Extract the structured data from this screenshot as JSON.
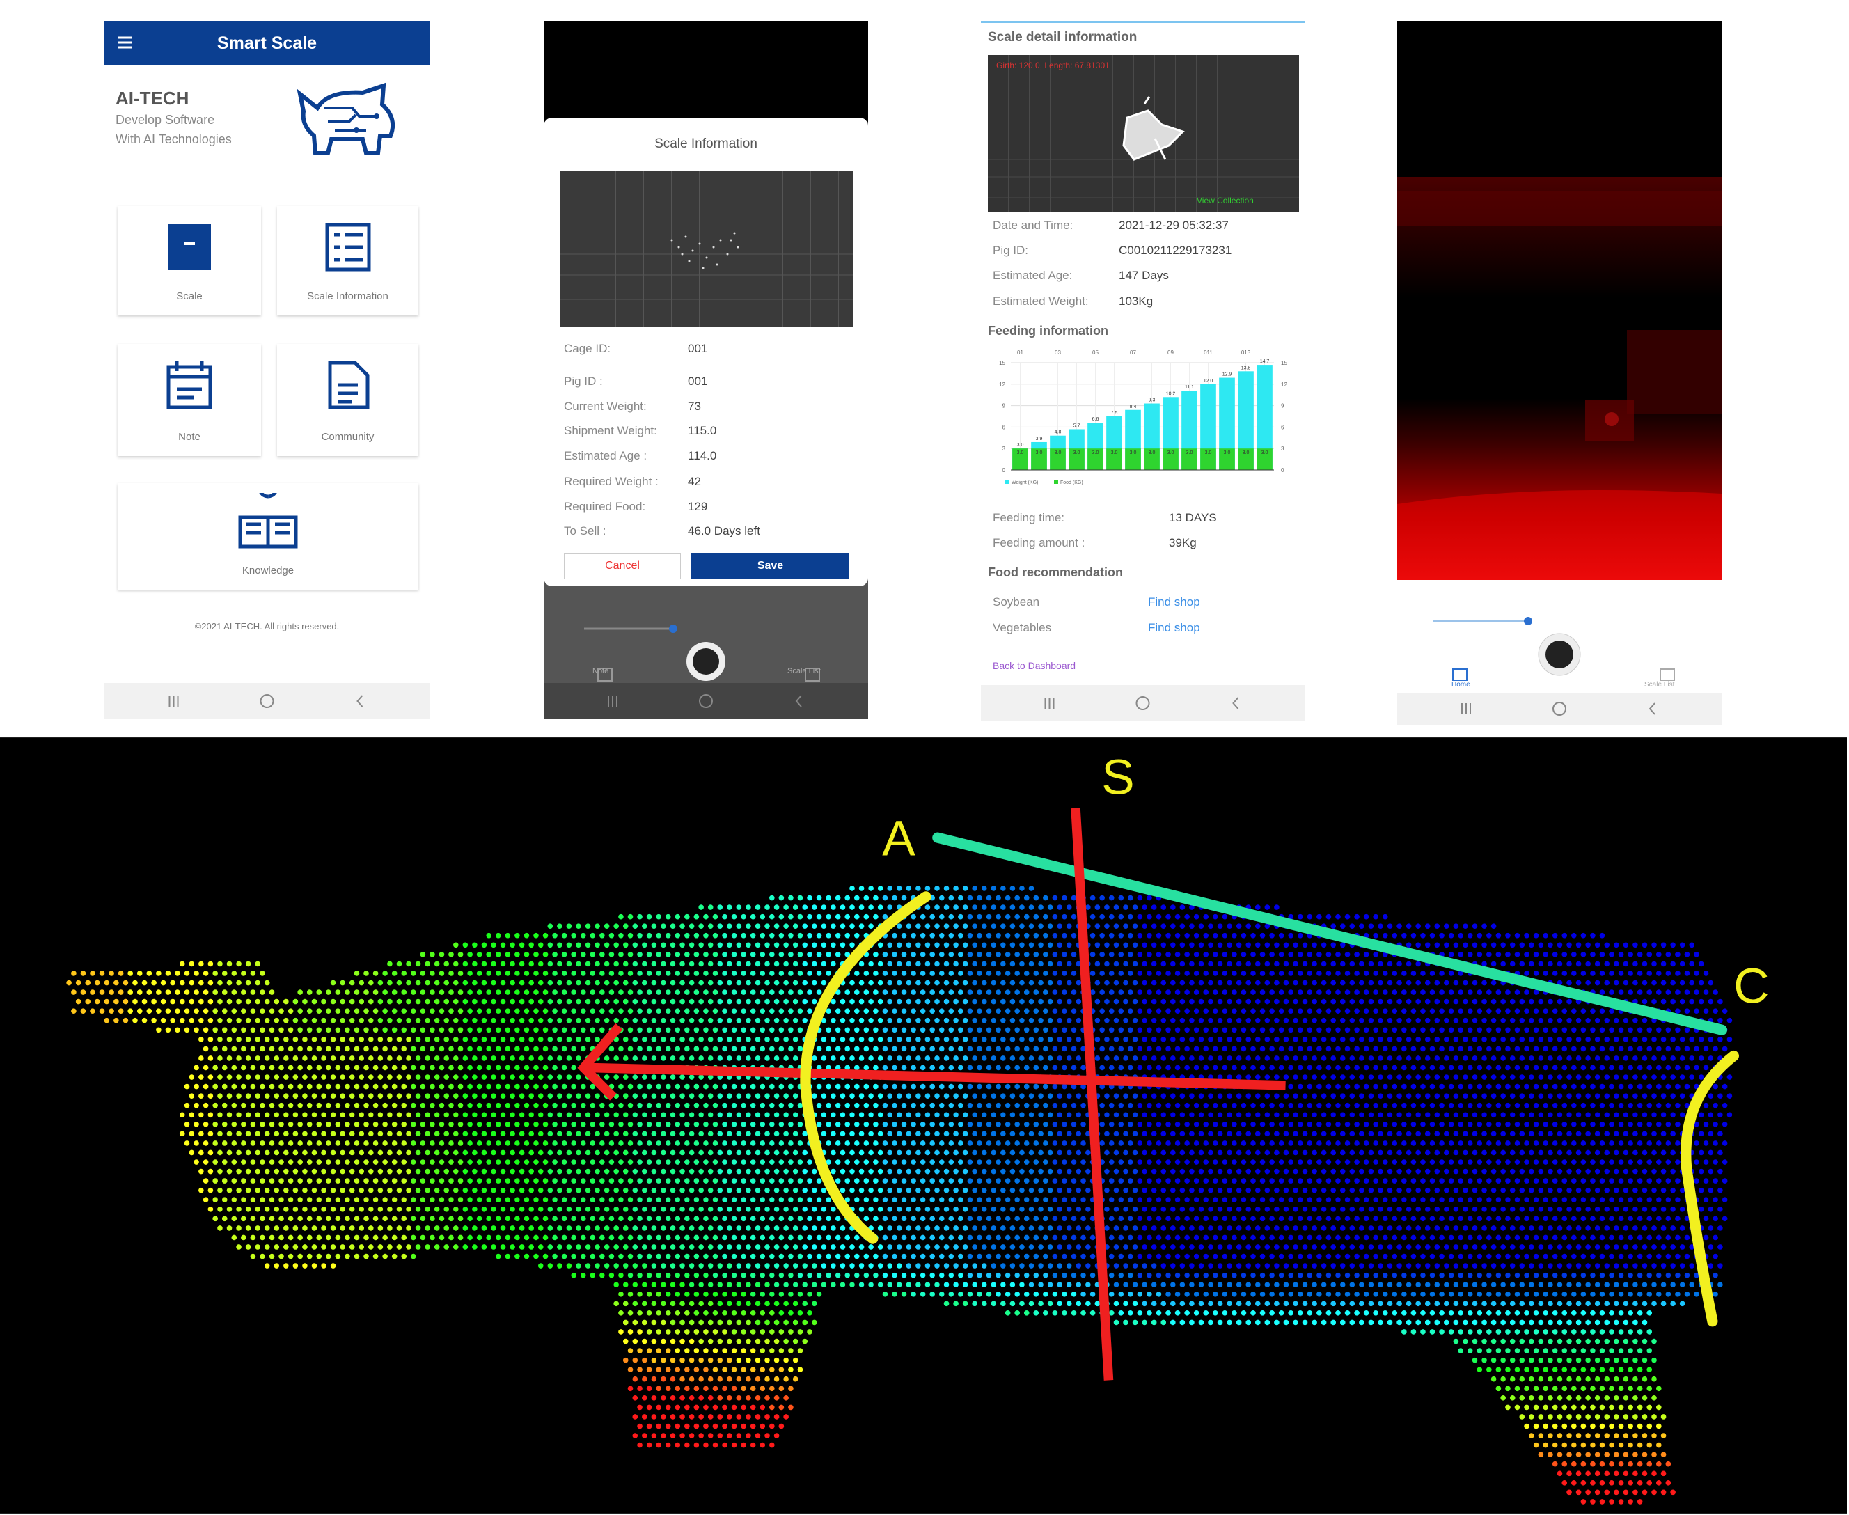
{
  "home": {
    "title": "Smart Scale",
    "brand": "AI-TECH",
    "tagline": [
      "Develop Software",
      "With AI Technologies"
    ],
    "menu": [
      "Scale",
      "Scale Information",
      "Note",
      "Community",
      "Knowledge"
    ],
    "footer": "©2021 AI-TECH. All rights reserved."
  },
  "scale_information": {
    "title": "Scale Information",
    "fields": [
      {
        "label": "Cage ID:",
        "value": "001"
      },
      {
        "label": "Pig ID :",
        "value": "001"
      },
      {
        "label": "Current Weight:",
        "value": "73"
      },
      {
        "label": "Shipment Weight:",
        "value": "115.0"
      },
      {
        "label": "Estimated Age :",
        "value": "114.0"
      },
      {
        "label": "Required Weight :",
        "value": "42"
      },
      {
        "label": "Required Food:",
        "value": "129"
      },
      {
        "label": "To Sell :",
        "value": "46.0 Days left"
      }
    ],
    "buttons": [
      "Cancel",
      "Save"
    ],
    "nav": [
      "Note",
      "Scale List"
    ]
  },
  "scale_detail": {
    "title": "Scale detail information",
    "overlay": "Girth: 120.0, Length: 67.81301",
    "view_link": "View Collection",
    "fields": [
      {
        "label": "Date and Time:",
        "value": "2021-12-29 05:32:37"
      },
      {
        "label": "Pig ID:",
        "value": "C0010211229173231"
      },
      {
        "label": "Estimated Age:",
        "value": "147 Days"
      },
      {
        "label": "Estimated Weight:",
        "value": "103Kg"
      }
    ],
    "feeding_title": "Feeding information",
    "feeding": [
      {
        "label": "Feeding time:",
        "value": "13 DAYS"
      },
      {
        "label": "Feeding amount :",
        "value": "39Kg"
      }
    ],
    "food_title": "Food recommendation",
    "food": [
      {
        "label": "Soybean",
        "link": "Find shop"
      },
      {
        "label": "Vegetables",
        "link": "Find shop"
      }
    ],
    "back": "Back to Dashboard"
  },
  "camera": {
    "nav": [
      "Home",
      "Scale List"
    ]
  },
  "measurement": {
    "labels": [
      "A",
      "S",
      "C"
    ]
  },
  "chart_data": {
    "type": "bar",
    "categories": [
      "01",
      null,
      "03",
      null,
      "05",
      null,
      "07",
      null,
      "09",
      null,
      "011",
      null,
      "013",
      null
    ],
    "series": [
      {
        "name": "Weight (KG)",
        "color": "#2ee8f2",
        "values": [
          3,
          3.9,
          4.8,
          5.7,
          6.6,
          7.5,
          8.4,
          9.3,
          10.2,
          11.1,
          12,
          12.9,
          13.8,
          14.7
        ],
        "value_labels": [
          "3.0",
          "3.9",
          "4.8",
          "5.7",
          "6.6",
          "7.5",
          "8.4",
          "9.3",
          "10.2",
          "11.1",
          "12.0",
          "12.9",
          "13.8",
          "14.7"
        ]
      },
      {
        "name": "Food (KG)",
        "color": "#2fd42f",
        "values": [
          3,
          3,
          3,
          3,
          3,
          3,
          3,
          3,
          3,
          3,
          3,
          3,
          3,
          3
        ],
        "value_labels": [
          "3.0",
          "3.0",
          "3.0",
          "3.0",
          "3.0",
          "3.0",
          "3.0",
          "3.0",
          "3.0",
          "3.0",
          "3.0",
          "3.0",
          "3.0",
          "3.0"
        ]
      }
    ],
    "ylim": [
      0,
      15
    ],
    "yticks": [
      0,
      3,
      6,
      9,
      12,
      15
    ],
    "grid": true
  }
}
